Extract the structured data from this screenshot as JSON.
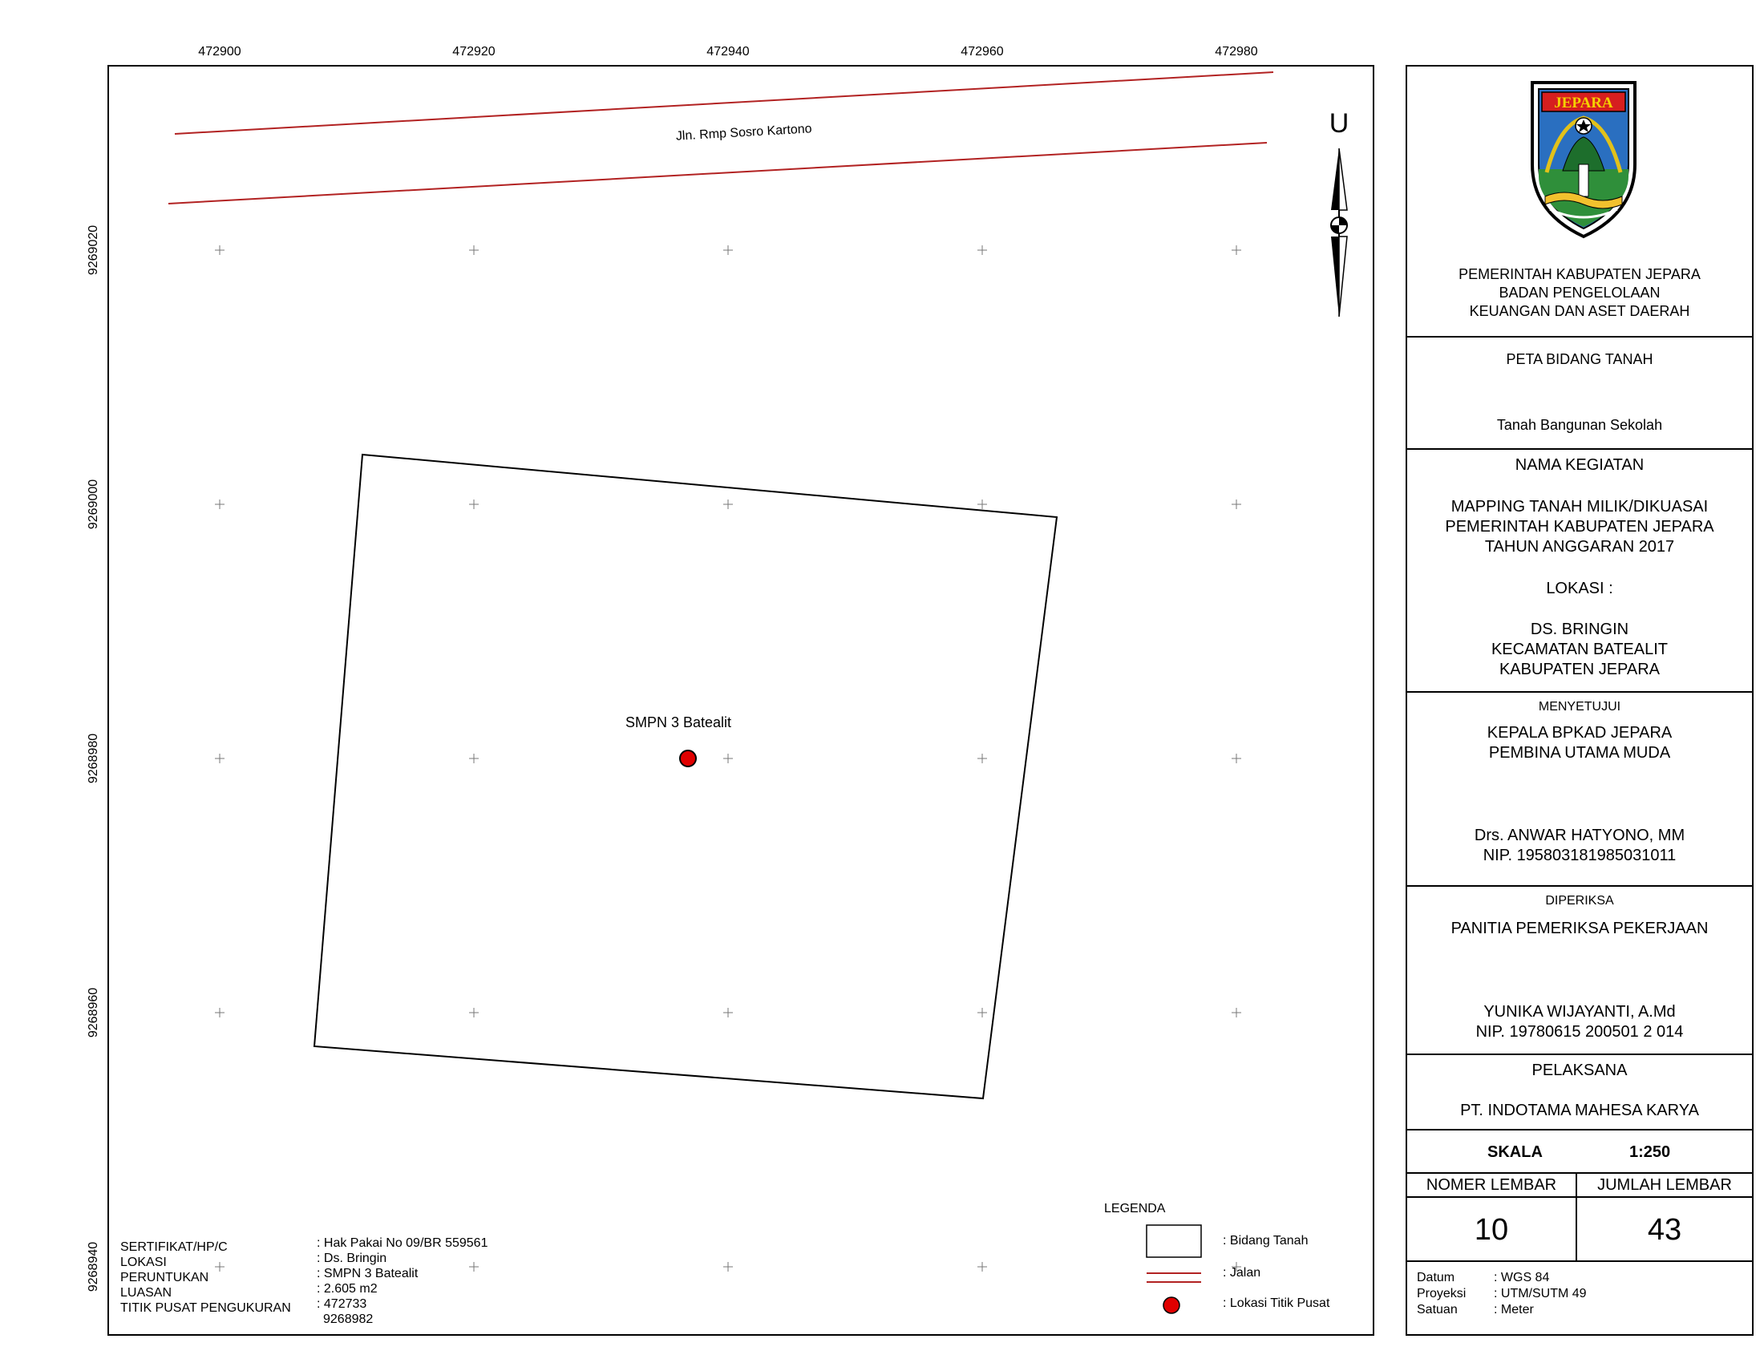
{
  "map": {
    "x_ticks": [
      "472900",
      "472920",
      "472940",
      "472960",
      "472980"
    ],
    "y_ticks": [
      "9269020",
      "9269000",
      "9268980",
      "9268960",
      "9268940"
    ],
    "road_label": "Jln. Rmp Sosro Kartono",
    "point_label": "SMPN 3 Batealit",
    "north_label": "U",
    "road_color": "#b22222",
    "point_color": "#e00000"
  },
  "info": {
    "labels": [
      "SERTIFIKAT/HP/C",
      "LOKASI",
      "PERUNTUKAN",
      "LUASAN",
      "TITIK PUSAT PENGUKURAN"
    ],
    "values": [
      ": Hak Pakai No 09/BR 559561",
      ": Ds. Bringin",
      ": SMPN 3 Batealit",
      ": 2.605 m2",
      ": 472733",
      "9268982"
    ]
  },
  "legend": {
    "title": "LEGENDA",
    "items": [
      ": Bidang Tanah",
      ": Jalan",
      ": Lokasi Titik Pusat"
    ]
  },
  "panel": {
    "logo_text": "JEPARA",
    "header": [
      "PEMERINTAH KABUPATEN JEPARA",
      "BADAN PENGELOLAAN",
      "KEUANGAN DAN ASET DAERAH"
    ],
    "map_title": "PETA BIDANG TANAH",
    "map_subtitle": "Tanah Bangunan Sekolah",
    "kegiatan_title": "NAMA KEGIATAN",
    "kegiatan_lines": [
      "MAPPING TANAH MILIK/DIKUASAI",
      "PEMERINTAH KABUPATEN JEPARA",
      "TAHUN ANGGARAN 2017"
    ],
    "lokasi_title": "LOKASI :",
    "lokasi_lines": [
      "DS. BRINGIN",
      "KECAMATAN BATEALIT",
      "KABUPATEN JEPARA"
    ],
    "menyetujui_title": "MENYETUJUI",
    "menyetujui_lines": [
      "KEPALA BPKAD JEPARA",
      "PEMBINA UTAMA MUDA"
    ],
    "menyetujui_name": "Drs. ANWAR HATYONO, MM",
    "menyetujui_nip": "NIP. 195803181985031011",
    "diperiksa_title": "DIPERIKSA",
    "diperiksa_line": "PANITIA PEMERIKSA PEKERJAAN",
    "diperiksa_name": "YUNIKA WIJAYANTI, A.Md",
    "diperiksa_nip": "NIP. 19780615 200501 2 014",
    "pelaksana_title": "PELAKSANA",
    "pelaksana_name": "PT. INDOTAMA MAHESA KARYA",
    "skala_label": "SKALA",
    "skala_value": "1:250",
    "nomer_label": "NOMER LEMBAR",
    "jumlah_label": "JUMLAH LEMBAR",
    "nomer_value": "10",
    "jumlah_value": "43",
    "meta_labels": [
      "Datum",
      "Proyeksi",
      "Satuan"
    ],
    "meta_values": [
      ": WGS 84",
      ": UTM/SUTM 49",
      ": Meter"
    ]
  }
}
